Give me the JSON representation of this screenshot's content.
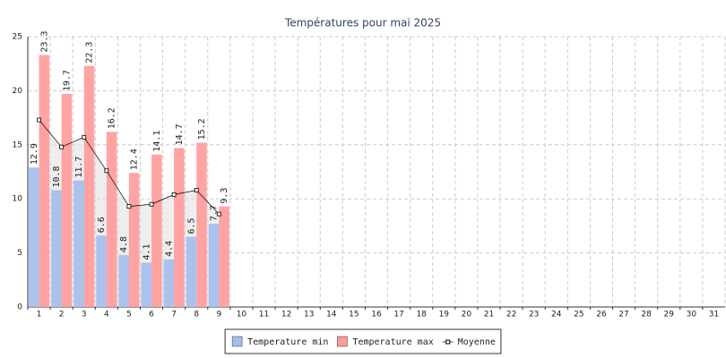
{
  "chart_data": {
    "type": "bar",
    "title": "Températures pour mai 2025",
    "categories": [
      "1",
      "2",
      "3",
      "4",
      "5",
      "6",
      "7",
      "8",
      "9",
      "10",
      "11",
      "12",
      "13",
      "14",
      "15",
      "16",
      "17",
      "18",
      "19",
      "20",
      "21",
      "22",
      "23",
      "24",
      "25",
      "26",
      "27",
      "28",
      "29",
      "30",
      "31"
    ],
    "series": [
      {
        "name": "Temperature min",
        "color": "#a3bdee",
        "values": [
          12.9,
          10.8,
          11.7,
          6.6,
          4.8,
          4.1,
          4.4,
          6.5,
          7.7,
          null,
          null,
          null,
          null,
          null,
          null,
          null,
          null,
          null,
          null,
          null,
          null,
          null,
          null,
          null,
          null,
          null,
          null,
          null,
          null,
          null,
          null
        ]
      },
      {
        "name": "Temperature max",
        "color": "#ff9999",
        "values": [
          23.3,
          19.7,
          22.3,
          16.2,
          12.4,
          14.1,
          14.7,
          15.2,
          9.3,
          null,
          null,
          null,
          null,
          null,
          null,
          null,
          null,
          null,
          null,
          null,
          null,
          null,
          null,
          null,
          null,
          null,
          null,
          null,
          null,
          null,
          null
        ]
      },
      {
        "name": "Moyenne",
        "type": "line",
        "color": "#000000",
        "values": [
          17.3,
          14.8,
          15.7,
          12.6,
          9.3,
          9.5,
          10.4,
          10.8,
          8.6,
          null,
          null,
          null,
          null,
          null,
          null,
          null,
          null,
          null,
          null,
          null,
          null,
          null,
          null,
          null,
          null,
          null,
          null,
          null,
          null,
          null,
          null
        ]
      }
    ],
    "ylim": [
      0,
      25
    ],
    "yticks": [
      0,
      5,
      10,
      15,
      20,
      25
    ],
    "grid": true,
    "legend": "bottom"
  }
}
